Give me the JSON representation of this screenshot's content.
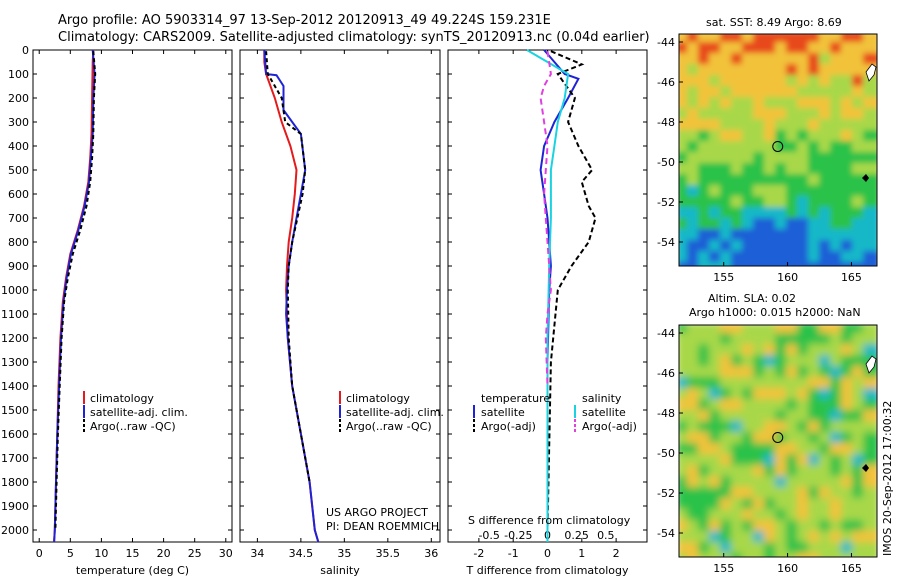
{
  "title": {
    "line1": "Argo profile: AO 5903314_97 13-Sep-2012 20120913_49 49.224S 159.231E",
    "line2": "Climatology: CARS2009. Satellite-adjusted climatology: synTS_20120913.nc (0.04d earlier)"
  },
  "credit": [
    "US ARGO PROJECT",
    "PI: DEAN ROEMMICH"
  ],
  "imos_stamp": "IMOS 20-Sep-2012 17:00:32",
  "colors": {
    "climatology": "#e41a1c",
    "satellite": "#1f23d6",
    "argo": "#000000",
    "sal_satellite": "#19d3e0",
    "sal_argo": "#e040e0"
  },
  "chart_data": [
    {
      "type": "line",
      "name": "temperature-panel",
      "xlabel": "temperature (deg C)",
      "ylabel": "",
      "xlim": [
        -1,
        31
      ],
      "ylim": [
        2050,
        0
      ],
      "xticks": [
        0,
        5,
        10,
        15,
        20,
        25,
        30
      ],
      "yticks": [
        0,
        100,
        200,
        300,
        400,
        500,
        600,
        700,
        800,
        900,
        1000,
        1100,
        1200,
        1300,
        1400,
        1500,
        1600,
        1700,
        1800,
        1900,
        2000
      ],
      "legend": [
        "climatology",
        "satellite-adj. clim.",
        "Argo(..raw -QC)"
      ],
      "series": [
        {
          "name": "climatology",
          "color": "#e41a1c",
          "dash": "",
          "x": [
            8.7,
            8.6,
            8.5,
            8.4,
            8.2,
            7.9,
            7.2,
            6.2,
            5.0,
            4.3,
            3.8,
            3.4,
            3.1,
            2.9,
            2.7,
            2.5,
            2.4
          ],
          "y": [
            0,
            50,
            200,
            350,
            450,
            550,
            650,
            750,
            850,
            950,
            1050,
            1200,
            1400,
            1600,
            1800,
            2000,
            2050
          ]
        },
        {
          "name": "satellite-adj. clim.",
          "color": "#1f23d6",
          "dash": "",
          "x": [
            8.6,
            8.9,
            8.7,
            8.6,
            8.3,
            8.0,
            7.3,
            6.3,
            5.1,
            4.4,
            3.9,
            3.5,
            3.2,
            2.9,
            2.7,
            2.5,
            2.4
          ],
          "y": [
            0,
            100,
            200,
            350,
            450,
            550,
            650,
            750,
            850,
            950,
            1050,
            1200,
            1400,
            1600,
            1800,
            2000,
            2050
          ]
        },
        {
          "name": "Argo(..raw -QC)",
          "color": "#000000",
          "dash": "4 3",
          "x": [
            8.7,
            9.0,
            8.8,
            8.7,
            8.5,
            8.2,
            7.6,
            6.6,
            5.4,
            4.6,
            4.0,
            3.6,
            3.3,
            3.0,
            2.8,
            2.6
          ],
          "y": [
            5,
            100,
            200,
            350,
            450,
            550,
            650,
            750,
            850,
            950,
            1050,
            1200,
            1400,
            1600,
            1800,
            2000
          ]
        }
      ]
    },
    {
      "type": "line",
      "name": "salinity-panel",
      "xlabel": "salinity",
      "xlim": [
        33.8,
        36.1
      ],
      "ylim": [
        2050,
        0
      ],
      "xticks": [
        34,
        34.5,
        35,
        35.5,
        36
      ],
      "legend": [
        "climatology",
        "satellite-adj. clim.",
        "Argo(..raw -QC)"
      ],
      "series": [
        {
          "name": "climatology",
          "color": "#e41a1c",
          "dash": "",
          "x": [
            34.08,
            34.08,
            34.1,
            34.2,
            34.28,
            34.38,
            34.45,
            34.43,
            34.4,
            34.36,
            34.34,
            34.33,
            34.35,
            34.4,
            34.5,
            34.6,
            34.66,
            34.7
          ],
          "y": [
            0,
            50,
            100,
            200,
            300,
            400,
            500,
            600,
            700,
            800,
            900,
            1000,
            1200,
            1400,
            1600,
            1800,
            2000,
            2050
          ]
        },
        {
          "name": "satellite-adj. clim.",
          "color": "#1f23d6",
          "dash": "",
          "x": [
            34.08,
            34.1,
            34.22,
            34.3,
            34.3,
            34.5,
            34.55,
            34.5,
            34.45,
            34.4,
            34.36,
            34.34,
            34.33,
            34.35,
            34.4,
            34.5,
            34.6,
            34.66,
            34.7
          ],
          "y": [
            0,
            100,
            105,
            150,
            250,
            350,
            500,
            600,
            700,
            800,
            900,
            1000,
            1100,
            1200,
            1400,
            1600,
            1800,
            2000,
            2050
          ]
        },
        {
          "name": "Argo(..raw -QC)",
          "color": "#000000",
          "dash": "4 3",
          "x": [
            34.1,
            34.12,
            34.2,
            34.28,
            34.32,
            34.5,
            34.55,
            34.52,
            34.46,
            34.4,
            34.36,
            34.35,
            34.36,
            34.4,
            34.5,
            34.6
          ],
          "y": [
            5,
            100,
            150,
            200,
            300,
            350,
            500,
            600,
            700,
            800,
            900,
            1000,
            1200,
            1400,
            1600,
            1800
          ]
        }
      ]
    },
    {
      "type": "line",
      "name": "difference-panel",
      "xlabel": "T difference from climatology",
      "xlim": [
        -2.9,
        2.9
      ],
      "ylim": [
        2050,
        0
      ],
      "xticks": [
        -2,
        -1,
        0,
        1,
        2
      ],
      "top_axis_label": "S difference from climatology",
      "top_ticks": [
        "-0.5",
        "-0.25",
        "0",
        "0.25",
        "0.5"
      ],
      "legend_left_title": "temperature",
      "legend_right_title": "salinity",
      "legend": [
        "satellite",
        "Argo(-adj)",
        "satellite",
        "Argo(-adj)"
      ],
      "series": [
        {
          "name": "temperature satellite",
          "color": "#1f23d6",
          "dash": "",
          "x": [
            -0.1,
            0.2,
            0.5,
            0.9,
            0.6,
            0.2,
            -0.1,
            -0.2,
            -0.1,
            0.0,
            0.05,
            0.1,
            0.05,
            0.0,
            0.0,
            0.0
          ],
          "y": [
            0,
            50,
            100,
            120,
            200,
            300,
            400,
            500,
            600,
            700,
            800,
            900,
            1000,
            1300,
            1600,
            2050
          ]
        },
        {
          "name": "temperature Argo(-adj)",
          "color": "#000000",
          "dash": "5 3",
          "x": [
            0.1,
            1.0,
            0.3,
            0.8,
            0.6,
            0.9,
            1.3,
            1.0,
            1.2,
            1.4,
            1.2,
            0.7,
            0.3,
            0.1,
            0.0
          ],
          "y": [
            5,
            60,
            100,
            200,
            300,
            400,
            500,
            550,
            650,
            700,
            800,
            900,
            1000,
            1300,
            2000
          ]
        },
        {
          "name": "salinity satellite",
          "color": "#19d3e0",
          "dash": "",
          "x": [
            -0.6,
            0.0,
            0.6,
            0.5,
            0.3,
            0.2,
            0.1,
            0.1,
            0.05,
            0.0,
            0.0,
            0.0
          ],
          "y": [
            0,
            50,
            100,
            200,
            300,
            400,
            500,
            700,
            900,
            1200,
            1600,
            2050
          ]
        },
        {
          "name": "salinity Argo(-adj)",
          "color": "#e040e0",
          "dash": "6 4",
          "x": [
            0.0,
            0.1,
            -0.1,
            -0.2,
            -0.1,
            0.0,
            -0.1,
            0.0,
            0.1,
            0.0,
            -0.05,
            0.0
          ],
          "y": [
            5,
            100,
            150,
            200,
            300,
            400,
            600,
            800,
            1000,
            1100,
            1200,
            1400
          ]
        }
      ]
    },
    {
      "type": "heatmap",
      "name": "sst-map",
      "title": "sat. SST: 8.49 Argo: 8.69",
      "xticks": [
        155,
        160,
        165
      ],
      "yticks": [
        -44,
        -46,
        -48,
        -50,
        -52,
        -54
      ],
      "xlim": [
        151.5,
        167
      ],
      "ylim": [
        -55.2,
        -43.6
      ],
      "argo_position": [
        159.231,
        -49.224
      ]
    },
    {
      "type": "heatmap",
      "name": "sla-map",
      "title_line1": "Altim. SLA: 0.02",
      "title_line2": "Argo h1000: 0.015 h2000: NaN",
      "xticks": [
        155,
        160,
        165
      ],
      "yticks": [
        -44,
        -46,
        -48,
        -50,
        -52,
        -54
      ],
      "xlim": [
        151.5,
        167
      ],
      "ylim": [
        -55.2,
        -43.6
      ],
      "argo_position": [
        159.231,
        -49.224
      ]
    }
  ]
}
